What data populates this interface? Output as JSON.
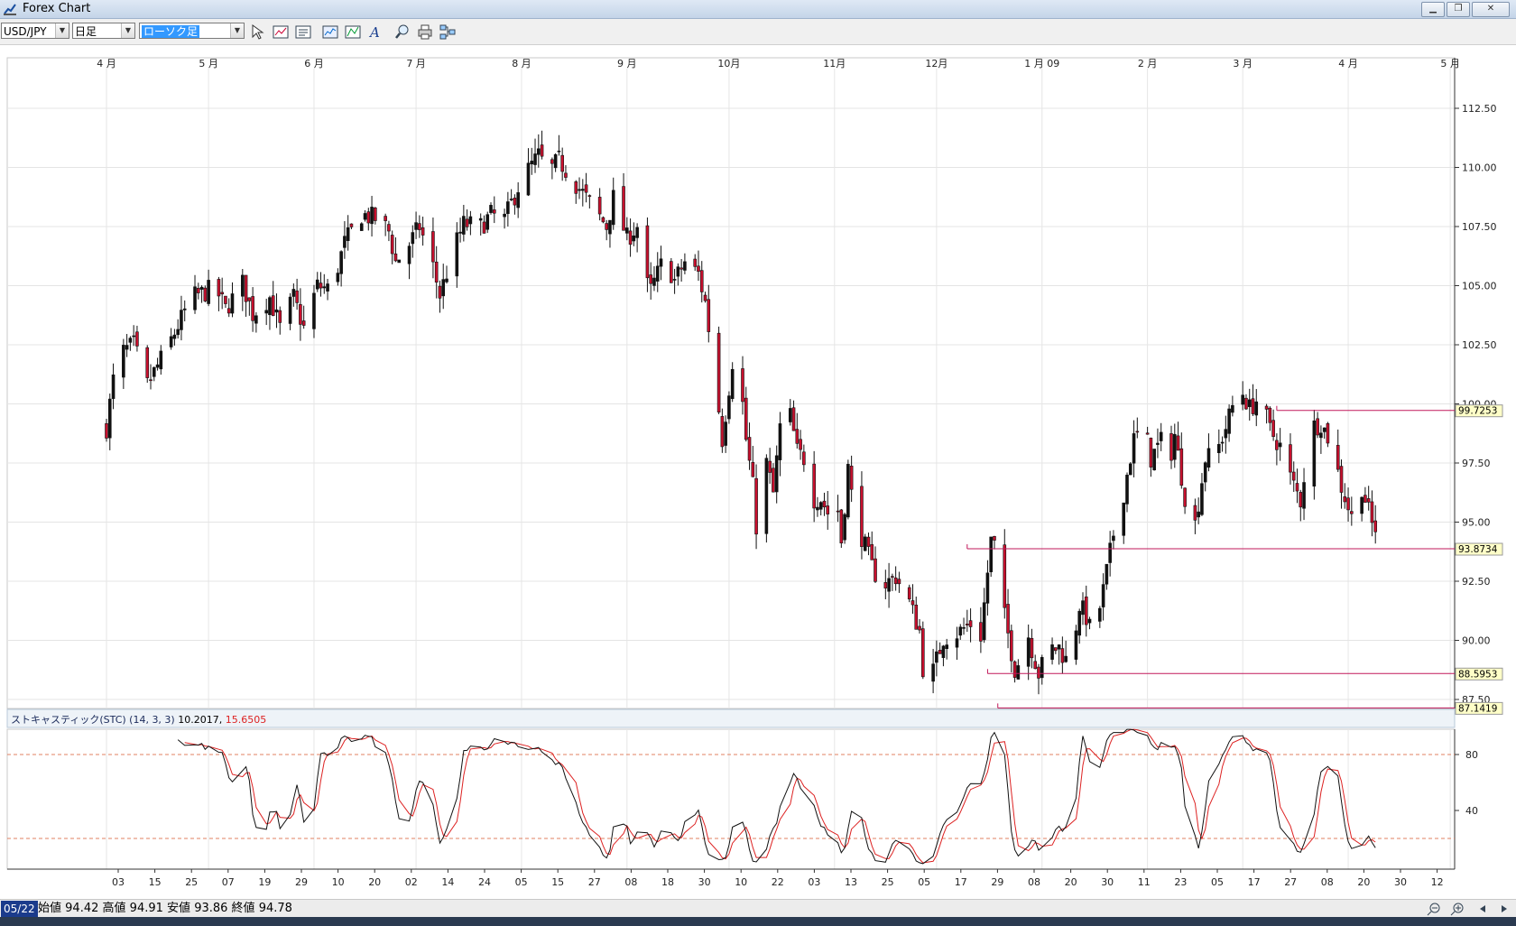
{
  "window": {
    "title": "Forex Chart"
  },
  "toolbar": {
    "symbol": "USD/JPY",
    "timeframe": "日足",
    "chart_type": "ローソク足",
    "tools": [
      "pointer-icon",
      "chart-window-icon",
      "list-window-icon",
      "line-chart-icon",
      "indicator-chart-icon",
      "text-tool-icon",
      "zoom-search-icon",
      "print-icon",
      "settings-tree-icon"
    ]
  },
  "price_axis": {
    "ticks": [
      "112.50",
      "110.00",
      "107.50",
      "105.00",
      "102.50",
      "100.00",
      "97.50",
      "95.00",
      "92.50",
      "90.00",
      "87.50"
    ],
    "tick_values": [
      112.5,
      110,
      107.5,
      105,
      102.5,
      100,
      97.5,
      95,
      92.5,
      90,
      87.5
    ]
  },
  "month_labels": [
    {
      "label": "4 月",
      "day": 0
    },
    {
      "label": "5 月",
      "day": 30
    },
    {
      "label": "6 月",
      "day": 61
    },
    {
      "label": "7 月",
      "day": 91
    },
    {
      "label": "8 月",
      "day": 122
    },
    {
      "label": "9 月",
      "day": 153
    },
    {
      "label": "10月",
      "day": 183
    },
    {
      "label": "11月",
      "day": 214
    },
    {
      "label": "12月",
      "day": 244
    },
    {
      "label": "1 月 09",
      "day": 275
    },
    {
      "label": "2 月",
      "day": 306
    },
    {
      "label": "3 月",
      "day": 334
    },
    {
      "label": "4 月",
      "day": 365
    },
    {
      "label": "5 月",
      "day": 395
    }
  ],
  "date_labels": [
    "03",
    "15",
    "25",
    "07",
    "19",
    "29",
    "10",
    "20",
    "02",
    "14",
    "24",
    "05",
    "15",
    "27",
    "08",
    "18",
    "30",
    "10",
    "22",
    "03",
    "13",
    "25",
    "05",
    "17",
    "29",
    "08",
    "20",
    "30",
    "11",
    "23",
    "05",
    "17",
    "27",
    "08",
    "20",
    "30",
    "12"
  ],
  "levels": [
    {
      "value": "99.7253",
      "price": 99.7253,
      "start_day": 344
    },
    {
      "value": "93.8734",
      "price": 93.8734,
      "start_day": 253
    },
    {
      "value": "88.5953",
      "price": 88.5953,
      "start_day": 259
    },
    {
      "value": "87.1419",
      "price": 87.1419,
      "start_day": 262
    }
  ],
  "indicator": {
    "name": "ストキャスティック(STC) (14, 3, 3)",
    "k_value": "10.2017",
    "d_value": "15.6505",
    "ticks": [
      "80",
      "40"
    ],
    "tick_values": [
      80,
      40
    ],
    "overbought": 80,
    "oversold": 20
  },
  "chart_data": {
    "type": "candlestick",
    "symbol": "USD/JPY",
    "timeframe": "日足",
    "x_start": "2008-04-01",
    "ylim": [
      86,
      113
    ],
    "anchors": [
      [
        0,
        99.0
      ],
      [
        3,
        102.0
      ],
      [
        8,
        102.5
      ],
      [
        12,
        100.8
      ],
      [
        18,
        102.4
      ],
      [
        25,
        104.5
      ],
      [
        32,
        104.9
      ],
      [
        35,
        104.0
      ],
      [
        40,
        105.1
      ],
      [
        43,
        103.8
      ],
      [
        48,
        104.5
      ],
      [
        51,
        103.2
      ],
      [
        55,
        104.5
      ],
      [
        58,
        103.2
      ],
      [
        62,
        105.0
      ],
      [
        66,
        104.8
      ],
      [
        70,
        106.8
      ],
      [
        75,
        108.0
      ],
      [
        80,
        107.8
      ],
      [
        83,
        107.3
      ],
      [
        85,
        106.0
      ],
      [
        88,
        106.5
      ],
      [
        92,
        107.5
      ],
      [
        96,
        105.8
      ],
      [
        98,
        104.6
      ],
      [
        102,
        106.5
      ],
      [
        105,
        107.6
      ],
      [
        110,
        107.5
      ],
      [
        113,
        108.0
      ],
      [
        117,
        107.8
      ],
      [
        122,
        109.5
      ],
      [
        127,
        110.5
      ],
      [
        130,
        109.8
      ],
      [
        133,
        110.3
      ],
      [
        137,
        109.5
      ],
      [
        142,
        108.5
      ],
      [
        147,
        107.5
      ],
      [
        149,
        108.7
      ],
      [
        153,
        107.0
      ],
      [
        156,
        107.5
      ],
      [
        158,
        105.2
      ],
      [
        160,
        104.8
      ],
      [
        164,
        106.2
      ],
      [
        167,
        105.2
      ],
      [
        170,
        106.0
      ],
      [
        174,
        105.5
      ],
      [
        176,
        104.3
      ],
      [
        179,
        101.0
      ],
      [
        181,
        98.5
      ],
      [
        184,
        101.8
      ],
      [
        186,
        101.5
      ],
      [
        188,
        98.5
      ],
      [
        190,
        96.5
      ],
      [
        192,
        93.2
      ],
      [
        194,
        97.5
      ],
      [
        196,
        96.2
      ],
      [
        198,
        99.0
      ],
      [
        201,
        99.5
      ],
      [
        203,
        98.0
      ],
      [
        205,
        97.7
      ],
      [
        208,
        96.0
      ],
      [
        210,
        96.0
      ],
      [
        212,
        95.4
      ],
      [
        214,
        96.8
      ],
      [
        216,
        94.2
      ],
      [
        218,
        97.3
      ],
      [
        220,
        95.0
      ],
      [
        222,
        94.4
      ],
      [
        225,
        93.1
      ],
      [
        228,
        92.3
      ],
      [
        232,
        92.7
      ],
      [
        236,
        91.6
      ],
      [
        239,
        90.4
      ],
      [
        241,
        87.3
      ],
      [
        243,
        88.7
      ],
      [
        246,
        90.1
      ],
      [
        250,
        90.3
      ],
      [
        254,
        90.7
      ],
      [
        257,
        90.2
      ],
      [
        260,
        94.2
      ],
      [
        262,
        93.8
      ],
      [
        264,
        91.0
      ],
      [
        267,
        88.8
      ],
      [
        269,
        89.3
      ],
      [
        271,
        90.2
      ],
      [
        274,
        88.6
      ],
      [
        277,
        89.6
      ],
      [
        280,
        89.7
      ],
      [
        283,
        88.9
      ],
      [
        286,
        91.5
      ],
      [
        288,
        91.0
      ],
      [
        290,
        90.0
      ],
      [
        293,
        92.1
      ],
      [
        296,
        94.5
      ],
      [
        298,
        95.5
      ],
      [
        302,
        98.5
      ],
      [
        305,
        99.0
      ],
      [
        307,
        97.7
      ],
      [
        310,
        98.4
      ],
      [
        312,
        97.3
      ],
      [
        314,
        98.7
      ],
      [
        317,
        96.1
      ],
      [
        319,
        94.0
      ],
      [
        323,
        97.7
      ],
      [
        326,
        97.8
      ],
      [
        329,
        99.0
      ],
      [
        333,
        100.8
      ],
      [
        336,
        99.8
      ],
      [
        339,
        100.3
      ],
      [
        342,
        98.9
      ],
      [
        345,
        98.2
      ],
      [
        348,
        96.9
      ],
      [
        351,
        95.9
      ],
      [
        354,
        99.0
      ],
      [
        357,
        99.2
      ],
      [
        360,
        98.3
      ],
      [
        363,
        96.5
      ],
      [
        366,
        95.2
      ],
      [
        369,
        96.5
      ],
      [
        372,
        94.9
      ],
      [
        374,
        94.6
      ]
    ]
  }
}
